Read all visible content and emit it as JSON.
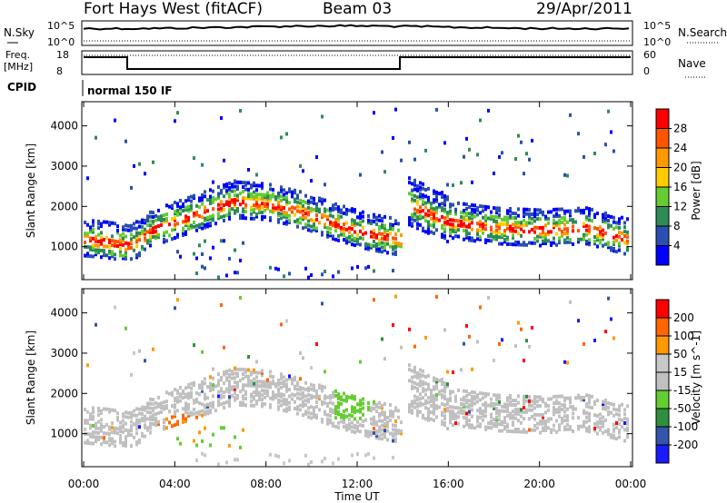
{
  "header": {
    "station": "Fort Hays West (fitACF)",
    "beam": "Beam 03",
    "date": "29/Apr/2011"
  },
  "top_panels": {
    "nsky_label": "N.Sky",
    "nsky_tick_top": "10^5",
    "nsky_tick_bottom": "10^0",
    "nsearch_label": "N.Search",
    "freq_label_line1": "Freq.",
    "freq_label_line2": "[MHz]",
    "freq_tick_top": "18",
    "freq_tick_bottom": "8",
    "nave_label": "Nave",
    "nave_tick_top": "60",
    "nave_tick_bottom": "0",
    "cpid_label": "CPID",
    "cpid_value": "normal 150 IF"
  },
  "colors": {
    "power_scale": [
      "#0000ff",
      "#2a4fb0",
      "#2e8b57",
      "#66cc33",
      "#ffcc00",
      "#ff9900",
      "#ff5500",
      "#ff0000"
    ],
    "velocity_scale": [
      "#1a1aff",
      "#3355aa",
      "#2f8f3f",
      "#66cc33",
      "#c0c0c0",
      "#c8c8c8",
      "#ff9900",
      "#ff6600",
      "#ff0000"
    ],
    "ground_scatter": "#aaaaaa"
  },
  "chart_data": [
    {
      "type": "heatmap",
      "name": "power",
      "ylabel": "Slant Range [km]",
      "xlabel": "",
      "colorbar_label": "Power [dB]",
      "colorbar_ticks": [
        "28",
        "24",
        "20",
        "16",
        "12",
        "8",
        "4"
      ],
      "xlim": [
        0,
        24
      ],
      "ylim": [
        180,
        4600
      ],
      "y_ticks": [
        "1000",
        "2000",
        "3000",
        "4000"
      ],
      "echo_band": [
        {
          "t": 0.0,
          "range": 1200
        },
        {
          "t": 1.0,
          "range": 1150
        },
        {
          "t": 2.0,
          "range": 1050
        },
        {
          "t": 3.0,
          "range": 1450
        },
        {
          "t": 4.5,
          "range": 1750
        },
        {
          "t": 6.5,
          "range": 2150
        },
        {
          "t": 8.0,
          "range": 2100
        },
        {
          "t": 9.5,
          "range": 1900
        },
        {
          "t": 11.0,
          "range": 1600
        },
        {
          "t": 12.5,
          "range": 1350
        },
        {
          "t": 14.0,
          "range": 1200
        },
        {
          "t": 14.2,
          "range": 2100
        },
        {
          "t": 15.0,
          "range": 1900
        },
        {
          "t": 16.0,
          "range": 1650
        },
        {
          "t": 18.0,
          "range": 1500
        },
        {
          "t": 20.0,
          "range": 1450
        },
        {
          "t": 22.0,
          "range": 1500
        },
        {
          "t": 24.0,
          "range": 1200
        }
      ]
    },
    {
      "type": "heatmap",
      "name": "velocity",
      "ylabel": "Slant Range [km]",
      "xlabel": "Time UT",
      "colorbar_label": "Velocity [m s^-1]",
      "colorbar_ticks": [
        "200",
        "100",
        "50",
        "15",
        "-15",
        "-50",
        "-100",
        "-200"
      ],
      "xlim": [
        0,
        24
      ],
      "ylim": [
        180,
        4600
      ],
      "y_ticks": [
        "1000",
        "2000",
        "3000",
        "4000"
      ],
      "x_ticks": [
        "00:00",
        "04:00",
        "08:00",
        "12:00",
        "16:00",
        "20:00",
        "00:00"
      ]
    }
  ]
}
